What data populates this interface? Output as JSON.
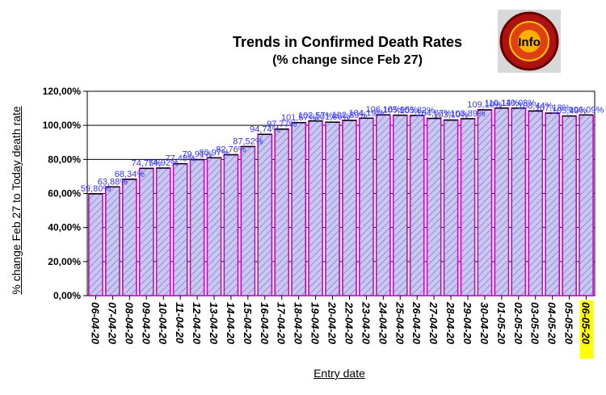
{
  "chart_data": {
    "type": "bar",
    "title": "Trends in Confirmed Death Rates",
    "subtitle": "(% change since Feb 27)",
    "xlabel": "Entry date",
    "ylabel": "% change Feb 27 to Today death rate",
    "ylim": [
      0,
      120
    ],
    "yticks": [
      "0,00%",
      "20,00%",
      "40,00%",
      "60,00%",
      "80,00%",
      "100,00%",
      "120,00%"
    ],
    "grid": true,
    "legend": "none",
    "categories": [
      "06-04-20",
      "07-04-20",
      "08-04-20",
      "09-04-20",
      "10-04-20",
      "11-04-20",
      "12-04-20",
      "13-04-20",
      "14-04-20",
      "15-04-20",
      "16-04-20",
      "17-04-20",
      "18-04-20",
      "19-04-20",
      "20-04-20",
      "22-04-20",
      "23-04-20",
      "24-04-20",
      "25-04-20",
      "26-04-20",
      "27-04-20",
      "28-04-20",
      "29-04-20",
      "30-04-20",
      "01-05-20",
      "02-05-20",
      "03-05-20",
      "04-05-20",
      "05-05-20",
      "06-05-20"
    ],
    "highlight_category": "06-05-20",
    "values": [
      59.8,
      63.88,
      68.34,
      74.75,
      74.92,
      77.48,
      79.91,
      80.97,
      82.76,
      87.52,
      94.74,
      97.77,
      101.57,
      102.57,
      101.86,
      102.89,
      104.19,
      106.16,
      105.95,
      105.82,
      104.07,
      103.1,
      103.89,
      109.1,
      110.14,
      110.08,
      108.44,
      107.18,
      105.49,
      106.09
    ],
    "data_labels": [
      "59,80%",
      "63,88%",
      "68,34%",
      "74,75%",
      "74,92%",
      "77,48%",
      "79,91%",
      "80,97%",
      "82,76%",
      "87,52%",
      "94,74%",
      "97,77%",
      "101,57%",
      "102,57%",
      "101,86%",
      "102,89%",
      "104,19%",
      "106,16%",
      "105,95%",
      "105,82%",
      "104,07%",
      "103,10%",
      "103,89%",
      "109,10%",
      "110,14%",
      "110,08%",
      "108,44%",
      "107,18%",
      "105,49%",
      "106,09%"
    ],
    "colors": {
      "bar_fill": "#c8c8f0",
      "bar_hatch": "#7878c8",
      "bar_edge": "#cc00cc",
      "label": "#3333ff",
      "highlight": "#ffff00"
    }
  },
  "logo": {
    "text": "Info",
    "name": "info-logo"
  }
}
